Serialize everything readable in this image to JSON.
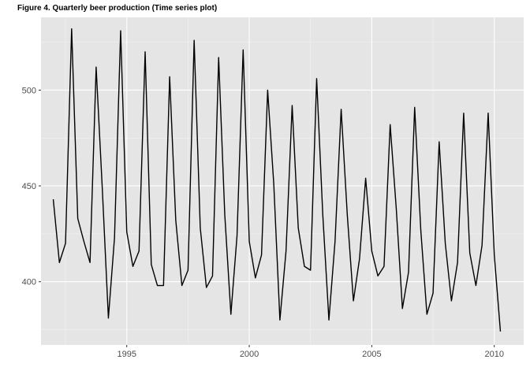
{
  "chart_data": {
    "type": "line",
    "title": "Figure 4. Quarterly beer production (Time series plot)",
    "xlabel": "",
    "ylabel": "",
    "x_ticks": [
      1995,
      2000,
      2005,
      2010
    ],
    "y_ticks": [
      400,
      450,
      500
    ],
    "xlim": [
      1991.5,
      2011.2
    ],
    "ylim": [
      367,
      538
    ],
    "grid": true,
    "background": "#e5e5e5",
    "line_color": "#000000",
    "series": [
      {
        "x": [
          1992.0,
          1992.25,
          1992.5,
          1992.75,
          1993.0,
          1993.25,
          1993.5,
          1993.75,
          1994.0,
          1994.25,
          1994.5,
          1994.75,
          1995.0,
          1995.25,
          1995.5,
          1995.75,
          1996.0,
          1996.25,
          1996.5,
          1996.75,
          1997.0,
          1997.25,
          1997.5,
          1997.75,
          1998.0,
          1998.25,
          1998.5,
          1998.75,
          1999.0,
          1999.25,
          1999.5,
          1999.75,
          2000.0,
          2000.25,
          2000.5,
          2000.75,
          2001.0,
          2001.25,
          2001.5,
          2001.75,
          2002.0,
          2002.25,
          2002.5,
          2002.75,
          2003.0,
          2003.25,
          2003.5,
          2003.75,
          2004.0,
          2004.25,
          2004.5,
          2004.75,
          2005.0,
          2005.25,
          2005.5,
          2005.75,
          2006.0,
          2006.25,
          2006.5,
          2006.75,
          2007.0,
          2007.25,
          2007.5,
          2007.75,
          2008.0,
          2008.25,
          2008.5,
          2008.75,
          2009.0,
          2009.25,
          2009.5,
          2009.75,
          2010.0,
          2010.25
        ],
        "values": [
          443,
          410,
          420,
          532,
          433,
          421,
          410,
          512,
          449,
          381,
          423,
          531,
          426,
          408,
          416,
          520,
          409,
          398,
          398,
          507,
          432,
          398,
          406,
          526,
          428,
          397,
          403,
          517,
          435,
          383,
          424,
          521,
          421,
          402,
          414,
          500,
          451,
          380,
          416,
          492,
          428,
          408,
          406,
          506,
          435,
          380,
          421,
          490,
          435,
          390,
          412,
          454,
          416,
          403,
          408,
          482,
          438,
          386,
          405,
          491,
          427,
          383,
          394,
          473,
          420,
          390,
          410,
          488,
          415,
          398,
          419,
          488,
          414,
          374
        ]
      }
    ]
  }
}
